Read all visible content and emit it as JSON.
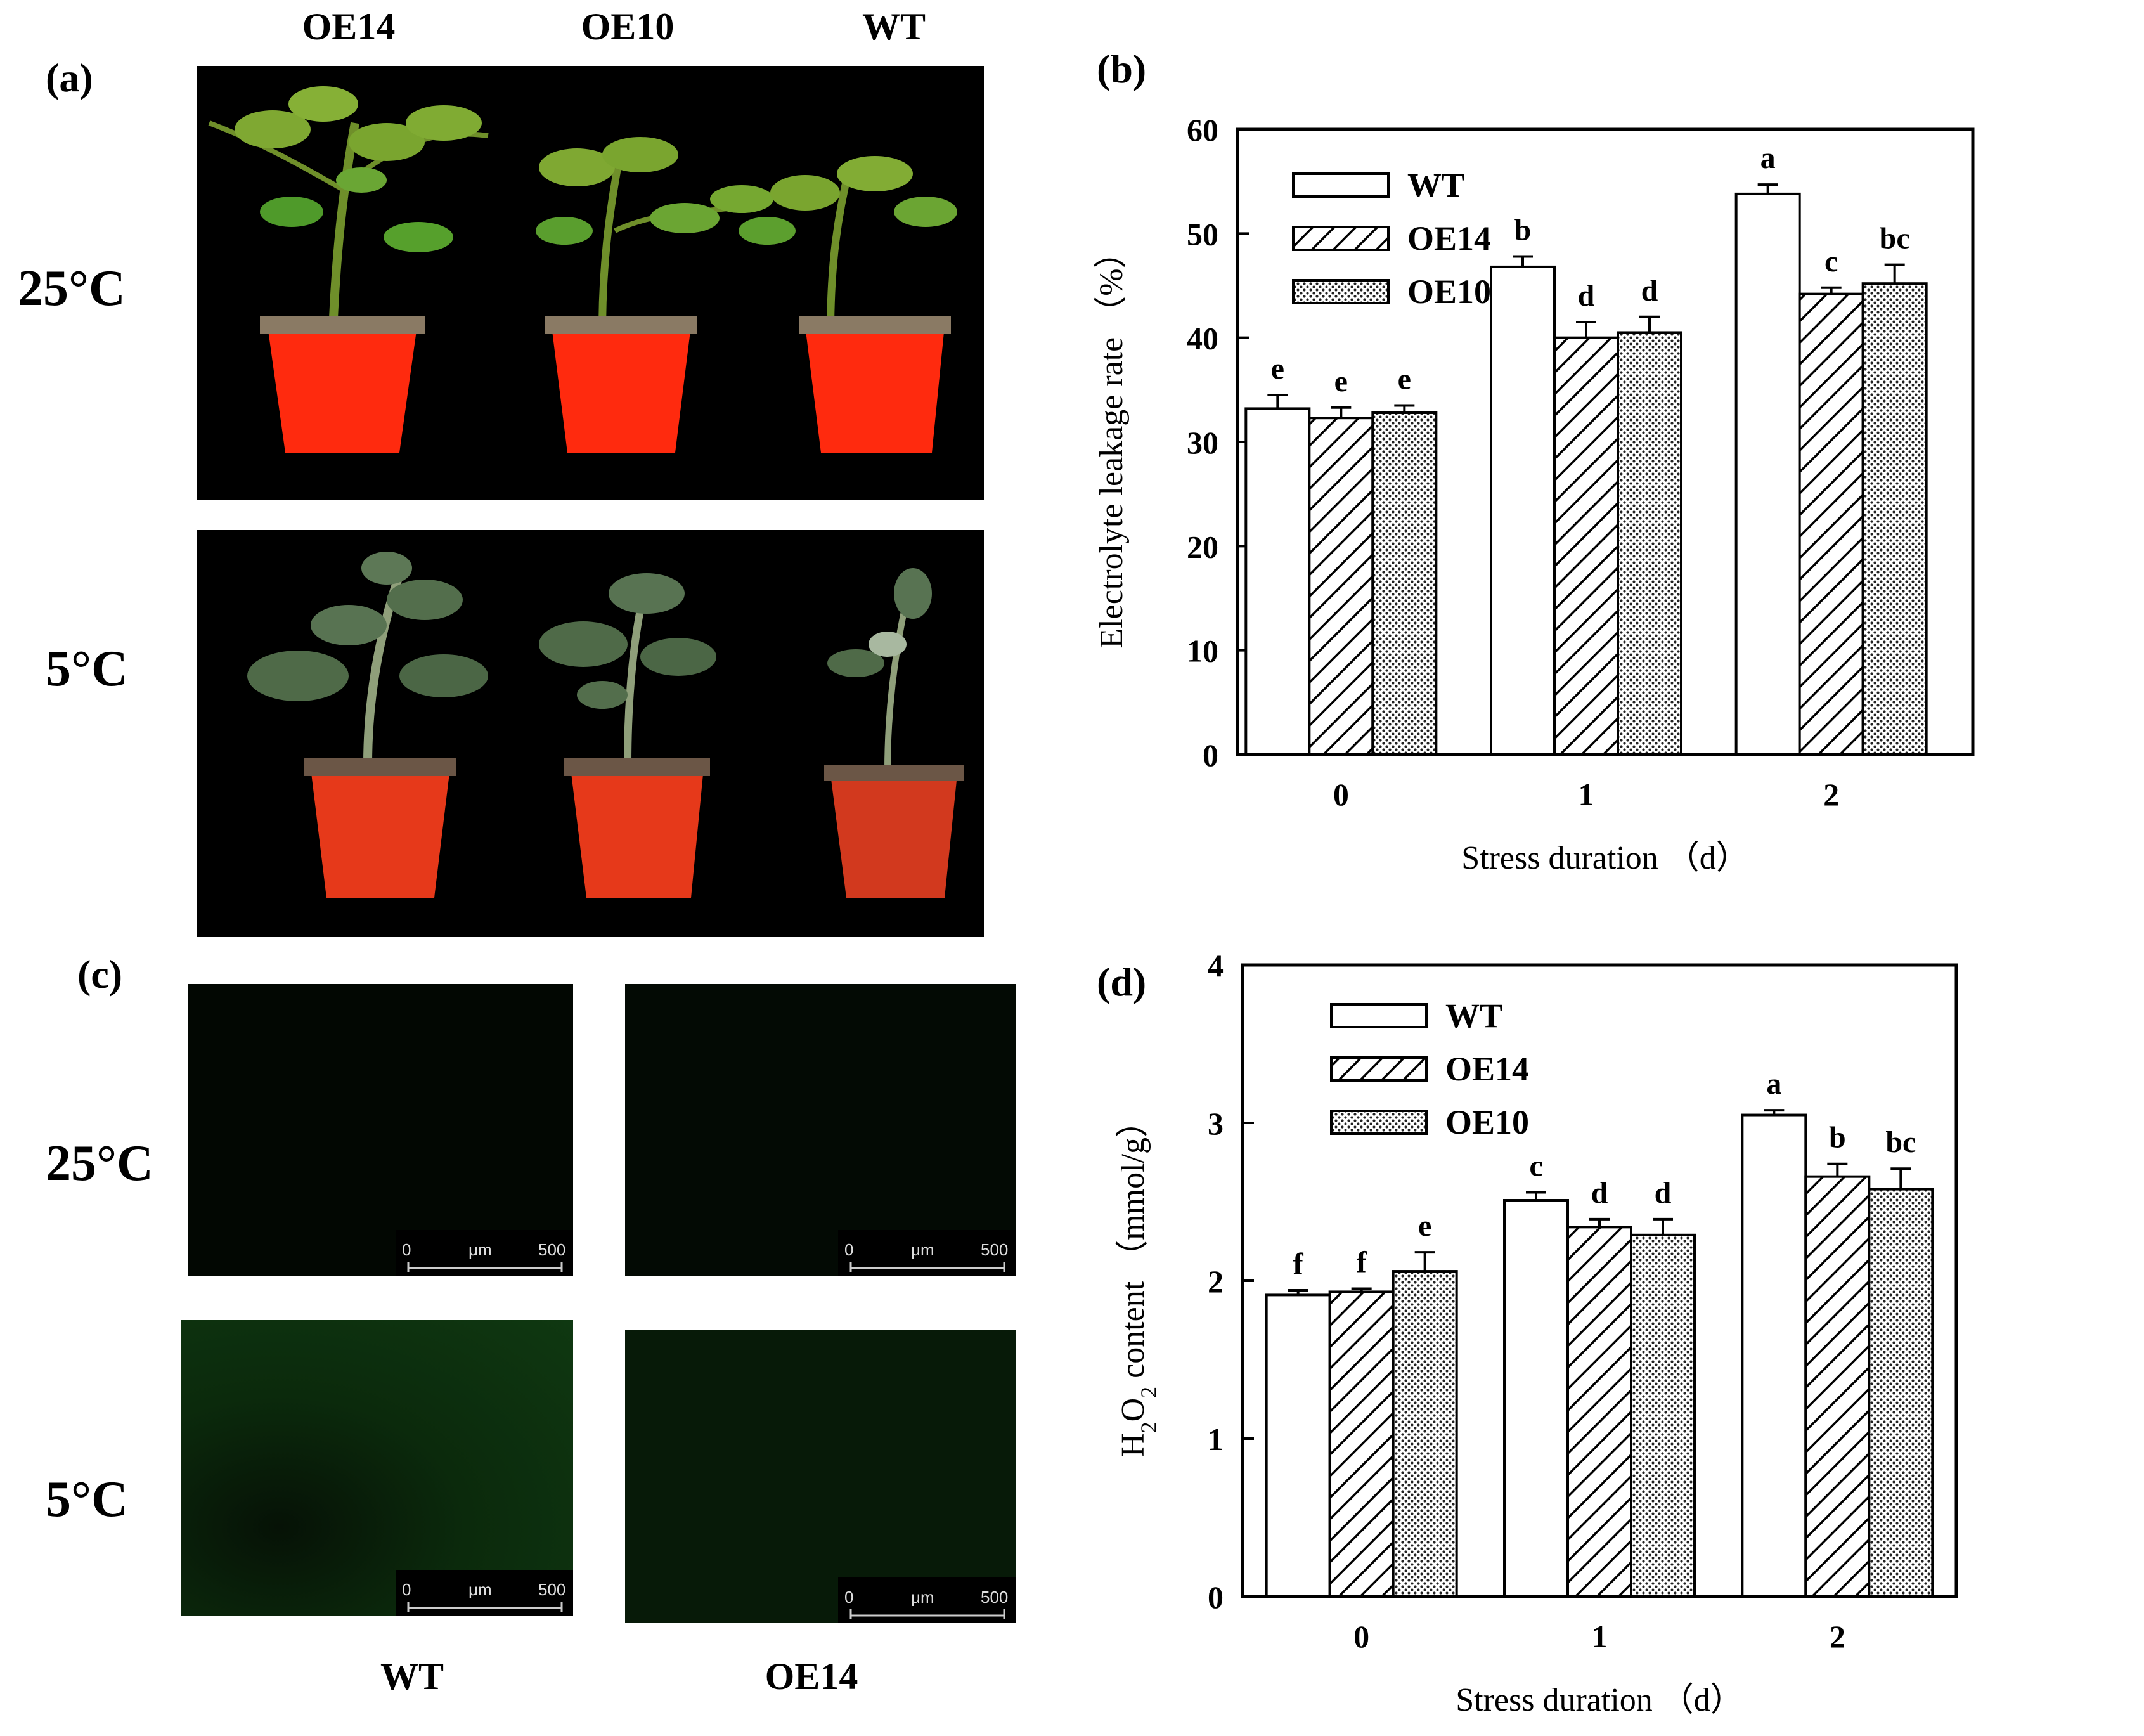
{
  "panel_a": {
    "label": "(a)",
    "columns": [
      "OE14",
      "OE10",
      "WT"
    ],
    "rows": [
      "25°C",
      "5°C"
    ]
  },
  "panel_c": {
    "label": "(c)",
    "rows": [
      "25°C",
      "5°C"
    ],
    "columns": [
      "WT",
      "OE14"
    ],
    "scalebar": {
      "start": "0",
      "unit": "μm",
      "end": "500"
    }
  },
  "chart_data": [
    {
      "id": "b",
      "panel_label": "(b)",
      "type": "bar",
      "categories": [
        "0",
        "1",
        "2"
      ],
      "series": [
        {
          "name": "WT",
          "values": [
            33.2,
            46.8,
            53.8
          ],
          "errors": [
            1.3,
            1.0,
            0.9
          ],
          "letters": [
            "e",
            "b",
            "a"
          ]
        },
        {
          "name": "OE14",
          "values": [
            32.3,
            40.0,
            44.2
          ],
          "errors": [
            1.0,
            1.5,
            0.6
          ],
          "letters": [
            "e",
            "d",
            "c"
          ]
        },
        {
          "name": "OE10",
          "values": [
            32.8,
            40.5,
            45.2
          ],
          "errors": [
            0.7,
            1.5,
            1.8
          ],
          "letters": [
            "e",
            "d",
            "bc"
          ]
        }
      ],
      "xlabel": "Stress duration （d）",
      "ylabel": "Electrolyte leakage rate （%）",
      "ylim": [
        0,
        60
      ],
      "yticks": [
        "0",
        "10",
        "20",
        "30",
        "40",
        "50",
        "60"
      ],
      "legend": "top-left",
      "grid": false
    },
    {
      "id": "d",
      "panel_label": "(d)",
      "type": "bar",
      "categories": [
        "0",
        "1",
        "2"
      ],
      "series": [
        {
          "name": "WT",
          "values": [
            1.91,
            2.51,
            3.05
          ],
          "errors": [
            0.03,
            0.05,
            0.03
          ],
          "letters": [
            "f",
            "c",
            "a"
          ]
        },
        {
          "name": "OE14",
          "values": [
            1.93,
            2.34,
            2.66
          ],
          "errors": [
            0.02,
            0.05,
            0.08
          ],
          "letters": [
            "f",
            "d",
            "b"
          ]
        },
        {
          "name": "OE10",
          "values": [
            2.06,
            2.29,
            2.58
          ],
          "errors": [
            0.12,
            0.1,
            0.13
          ],
          "letters": [
            "e",
            "d",
            "bc"
          ]
        }
      ],
      "xlabel": "Stress duration （d）",
      "ylabel_parts": [
        "H",
        "2",
        "O",
        "2",
        " content （mmol/g）"
      ],
      "ylim": [
        0,
        4
      ],
      "yticks": [
        "0",
        "1",
        "2",
        "3",
        "4"
      ],
      "legend": "top-left",
      "grid": false
    }
  ]
}
